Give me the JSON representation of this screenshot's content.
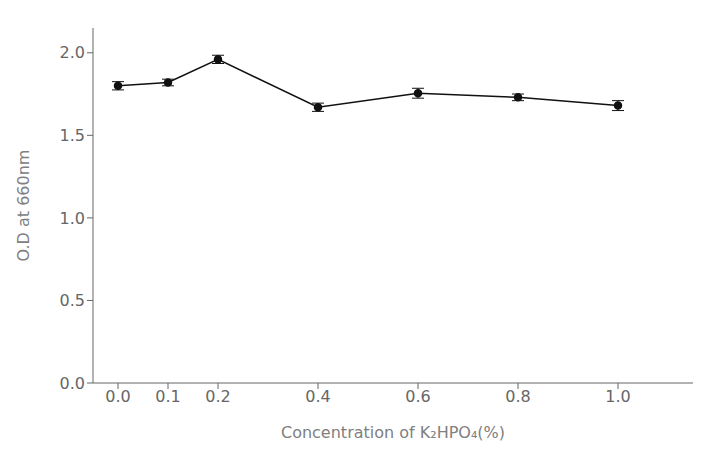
{
  "chart_data": {
    "type": "line",
    "x": [
      0.0,
      0.1,
      0.2,
      0.4,
      0.6,
      0.8,
      1.0
    ],
    "values": [
      1.8,
      1.82,
      1.96,
      1.67,
      1.755,
      1.73,
      1.68
    ],
    "yerr": [
      0.025,
      0.02,
      0.025,
      0.025,
      0.03,
      0.02,
      0.03
    ],
    "color": "#111111",
    "marker": "circle",
    "line_style": "solid",
    "xlabel": "Concentration of K₂HPO₄(%)",
    "ylabel": "O.D at 660nm",
    "xlim": [
      -0.05,
      1.15
    ],
    "ylim": [
      0.0,
      2.15
    ],
    "xticks": [
      {
        "value": 0,
        "label": "0.0"
      },
      0.1,
      0.2,
      0.4,
      0.6,
      0.8,
      {
        "value": 1,
        "label": "1.0"
      }
    ],
    "yticks": [
      {
        "value": 0,
        "label": "0.0"
      },
      0.5,
      {
        "value": 1,
        "label": "1.0"
      },
      1.5,
      {
        "value": 2,
        "label": "2.0"
      }
    ],
    "grid": false
  }
}
